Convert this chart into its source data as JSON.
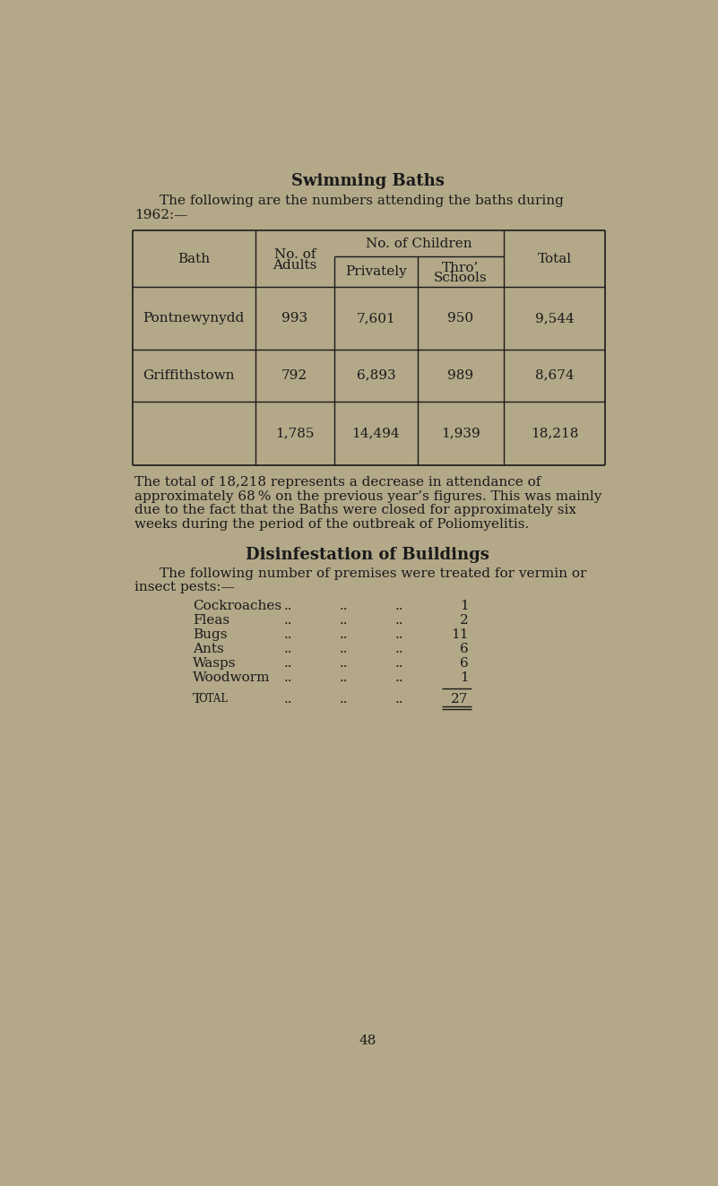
{
  "bg_color": "#b3a888",
  "text_color": "#1a1a1a",
  "page_number": "48",
  "title_swimming": "Swimming Baths",
  "table_headers": {
    "col1": "Bath",
    "col2_line1": "No. of",
    "col2_line2": "Adults",
    "col3_span": "No. of Children",
    "col3a": "Privately",
    "col3b_line1": "Thro’",
    "col3b_line2": "Schools",
    "col4": "Total"
  },
  "table_rows": [
    {
      "bath": "Pontnewynydd",
      "adults": "993",
      "privately": "7,601",
      "schools": "950",
      "total": "9,544"
    },
    {
      "bath": "Griffithstown",
      "adults": "792",
      "privately": "6,893",
      "schools": "989",
      "total": "8,674"
    },
    {
      "bath": "",
      "adults": "1,785",
      "privately": "14,494",
      "schools": "1,939",
      "total": "18,218"
    }
  ],
  "para1_lines": [
    "The total of 18,218 represents a decrease in attendance of",
    "approximately 68 % on the previous year’s figures. This was mainly",
    "due to the fact that the Baths were closed for approximately six",
    "weeks during the period of the outbreak of Poliomyelitis."
  ],
  "title_disinfestation": "Disinfestation of Buildings",
  "intro_disinfest_lines": [
    "The following number of premises were treated for vermin or",
    "insect pests:—"
  ],
  "pests": [
    {
      "name": "Cockroaches",
      "count": "1"
    },
    {
      "name": "Fleas",
      "count": "2"
    },
    {
      "name": "Bugs",
      "count": "11"
    },
    {
      "name": "Ants",
      "count": "6"
    },
    {
      "name": "Wasps",
      "count": "6"
    },
    {
      "name": "Woodworm",
      "count": "1"
    }
  ],
  "total_count": "27"
}
